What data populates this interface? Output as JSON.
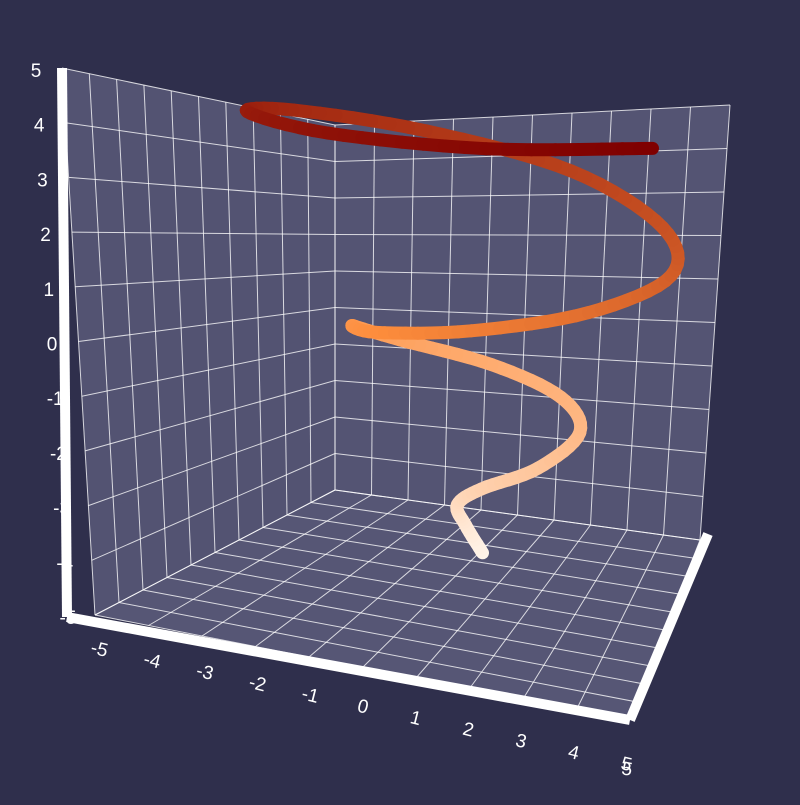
{
  "chart_data": {
    "type": "line",
    "projection": "3d",
    "title": "",
    "xlabel": "",
    "ylabel": "",
    "zlabel": "",
    "xlim": [
      -5,
      5
    ],
    "ylim": [
      -5,
      5
    ],
    "zlim": [
      -5,
      5
    ],
    "x_ticks": [
      "-5",
      "-4",
      "-3",
      "-2",
      "-1",
      "0",
      "1",
      "2",
      "3",
      "4",
      "5"
    ],
    "y_ticks": [
      "5"
    ],
    "z_ticks": [
      "-5",
      "-4",
      "-3",
      "-2",
      "-1",
      "0",
      "1",
      "2",
      "3",
      "4",
      "5"
    ],
    "grid": true,
    "legend": "none",
    "curve": "helix with radius growing from 0 to 5",
    "series": [
      {
        "color_start": "#fff5eb",
        "color_mid": "#fd8d3c",
        "color_end": "#7f0000",
        "points": [
          {
            "x": 0.0,
            "y": 0.0,
            "z": -4.0
          },
          {
            "x": -0.26,
            "y": -0.12,
            "z": -3.5
          },
          {
            "x": -0.21,
            "y": -0.58,
            "z": -3.0
          },
          {
            "x": 0.4,
            "y": -0.95,
            "z": -2.5
          },
          {
            "x": 1.3,
            "y": -0.6,
            "z": -2.0
          },
          {
            "x": 1.55,
            "y": 0.6,
            "z": -1.5
          },
          {
            "x": 0.7,
            "y": 1.7,
            "z": -1.2
          },
          {
            "x": -0.7,
            "y": 1.95,
            "z": -0.9
          },
          {
            "x": -2.0,
            "y": 1.0,
            "z": -0.5
          },
          {
            "x": -2.2,
            "y": -0.5,
            "z": 0.0
          },
          {
            "x": -1.0,
            "y": -2.2,
            "z": 0.4
          },
          {
            "x": 1.0,
            "y": -2.7,
            "z": 0.9
          },
          {
            "x": 2.7,
            "y": -1.6,
            "z": 1.4
          },
          {
            "x": 3.3,
            "y": 0.5,
            "z": 1.9
          },
          {
            "x": 2.2,
            "y": 2.6,
            "z": 2.3
          },
          {
            "x": 0.0,
            "y": 3.7,
            "z": 2.8
          },
          {
            "x": -2.4,
            "y": 3.0,
            "z": 3.2
          },
          {
            "x": -3.9,
            "y": 0.8,
            "z": 3.6
          },
          {
            "x": -3.5,
            "y": -2.0,
            "z": 4.0
          },
          {
            "x": -1.0,
            "y": -4.2,
            "z": 4.35
          },
          {
            "x": 2.0,
            "y": -4.3,
            "z": 4.65
          },
          {
            "x": 4.3,
            "y": -2.5,
            "z": 4.9
          }
        ]
      }
    ]
  }
}
